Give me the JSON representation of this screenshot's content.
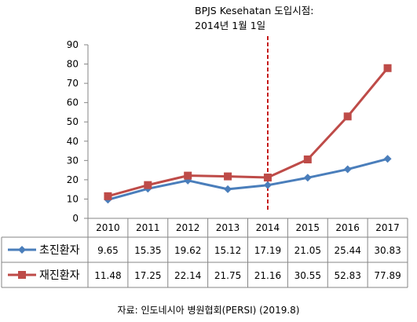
{
  "annotation": {
    "line1": "BPJS Kesehatan 도입시점:",
    "line2": "2014년  1월 1일"
  },
  "source": "자료: 인도네시아 병원협회(PERSI) (2019.8)",
  "chart_data": {
    "type": "line",
    "title": "",
    "xlabel": "",
    "ylabel": "",
    "categories": [
      "2010",
      "2011",
      "2012",
      "2013",
      "2014",
      "2015",
      "2016",
      "2017"
    ],
    "series": [
      {
        "name": "초진환자",
        "values": [
          9.65,
          15.35,
          19.62,
          15.12,
          17.19,
          21.05,
          25.44,
          30.83
        ],
        "labels": [
          "9.65",
          "15.35",
          "19.62",
          "15.12",
          "17.19",
          "21.05",
          "25.44",
          "30.83"
        ],
        "color": "#4a7ebb",
        "marker": "diamond"
      },
      {
        "name": "재진환자",
        "values": [
          11.48,
          17.25,
          22.14,
          21.75,
          21.16,
          30.55,
          52.83,
          77.89
        ],
        "labels": [
          "11.48",
          "17.25",
          "22.14",
          "21.75",
          "21.16",
          "30.55",
          "52.83",
          "77.89"
        ],
        "color": "#be4b48",
        "marker": "square"
      }
    ],
    "ylim": [
      0,
      90
    ],
    "yticks": [
      "0",
      "10",
      "20",
      "30",
      "40",
      "50",
      "60",
      "70",
      "80",
      "90"
    ],
    "vertical_marker_category": "2014",
    "marker_line_color": "#c00000",
    "grid": false,
    "legend": "data-table"
  }
}
